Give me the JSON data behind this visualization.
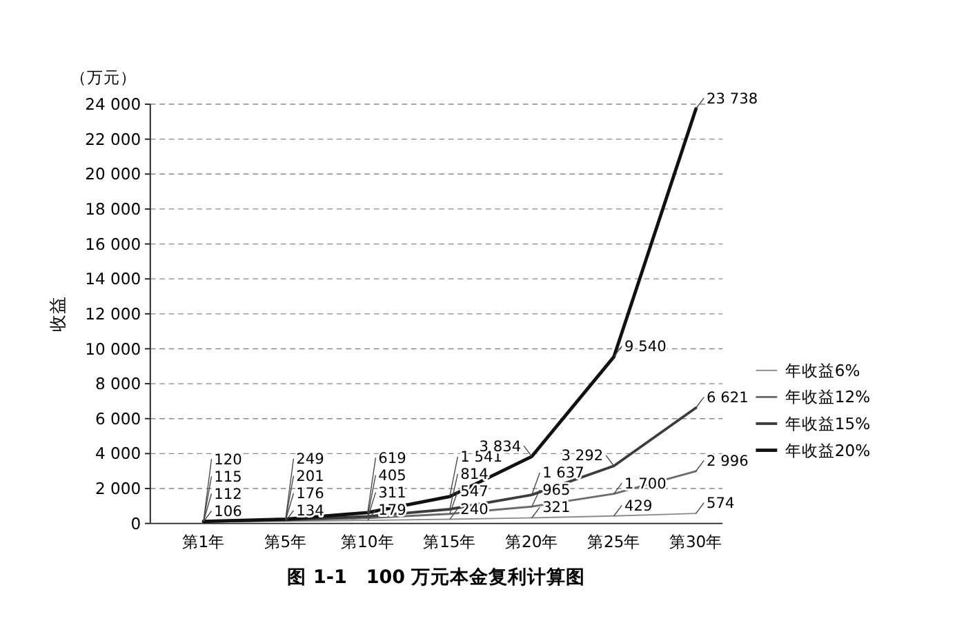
{
  "chart_data": {
    "type": "line",
    "title": "图 1-1　100 万元本金复利计算图",
    "ylabel": "收益",
    "annotations": [
      "（万元）"
    ],
    "categories": [
      "第1年",
      "第5年",
      "第10年",
      "第15年",
      "第20年",
      "第25年",
      "第30年"
    ],
    "series": [
      {
        "name": "年收益6%",
        "color": "#8c8c8c",
        "values": [
          106,
          134,
          179,
          240,
          321,
          429,
          574
        ],
        "value_labels": [
          "106",
          "134",
          "179",
          "240",
          "321",
          "429",
          "574"
        ]
      },
      {
        "name": "年收益12%",
        "color": "#6b6b6b",
        "values": [
          112,
          176,
          311,
          547,
          965,
          1700,
          2996
        ],
        "value_labels": [
          "112",
          "176",
          "311",
          "547",
          "965",
          "1 700",
          "2 996"
        ]
      },
      {
        "name": "年收益15%",
        "color": "#3c3c3c",
        "values": [
          115,
          201,
          405,
          814,
          1637,
          3292,
          6621
        ],
        "value_labels": [
          "115",
          "201",
          "405",
          "814",
          "1 637",
          "3 292",
          "6 621"
        ]
      },
      {
        "name": "年收益20%",
        "color": "#111111",
        "values": [
          120,
          249,
          619,
          1541,
          3834,
          9540,
          23738
        ],
        "value_labels": [
          "120",
          "249",
          "619",
          "1 541",
          "3 834",
          "9 540",
          "23 738"
        ]
      }
    ],
    "ylim": [
      0,
      24000
    ],
    "yticks": [
      0,
      {
        "value": 2000,
        "label": "2 000"
      },
      {
        "value": 4000,
        "label": "4 000"
      },
      {
        "value": 6000,
        "label": "6 000"
      },
      {
        "value": 8000,
        "label": "8 000"
      },
      {
        "value": 10000,
        "label": "10 000"
      },
      {
        "value": 12000,
        "label": "12 000"
      },
      {
        "value": 14000,
        "label": "14 000"
      },
      {
        "value": 16000,
        "label": "16 000"
      },
      {
        "value": 18000,
        "label": "18 000"
      },
      {
        "value": 20000,
        "label": "20 000"
      },
      {
        "value": 22000,
        "label": "22 000"
      },
      {
        "value": 24000,
        "label": "24 000"
      }
    ],
    "grid": "y",
    "legend": "right",
    "marker": "none",
    "line_style": "solid"
  }
}
